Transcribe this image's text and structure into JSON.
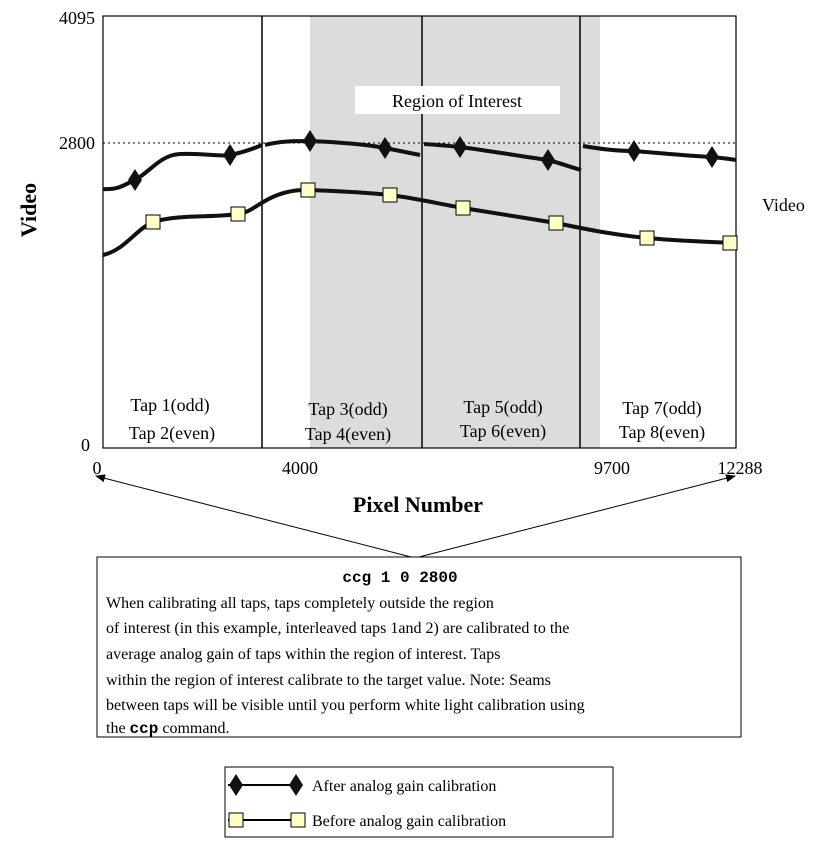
{
  "axes": {
    "y_label": "Video",
    "y_ticks": [
      "4095",
      "2800",
      "0"
    ],
    "x_label": "Pixel Number",
    "x_ticks": [
      "0",
      "4000",
      "9700",
      "12288"
    ],
    "right_label": "Video"
  },
  "region_label": "Region of Interest",
  "taps": [
    [
      "Tap 1(odd)",
      "Tap 2(even)"
    ],
    [
      "Tap 3(odd)",
      "Tap 4(even)"
    ],
    [
      "Tap 5(odd)",
      "Tap 6(even)"
    ],
    [
      "Tap 7(odd)",
      "Tap 8(even)"
    ]
  ],
  "note": {
    "command": "ccg 1 0 2800",
    "lines": [
      "When calibrating all taps, taps completely outside the region",
      "of interest (in this example, interleaved taps 1and 2) are calibrated to the",
      "average analog gain of taps within the region of interest. Taps",
      "within the region of interest calibrate to the target value. Note: Seams",
      "between taps will be visible until you perform white light calibration using"
    ],
    "last_line": [
      "the ",
      "ccp",
      " command."
    ]
  },
  "legend": [
    "After analog gain calibration",
    "Before analog gain calibration"
  ]
}
